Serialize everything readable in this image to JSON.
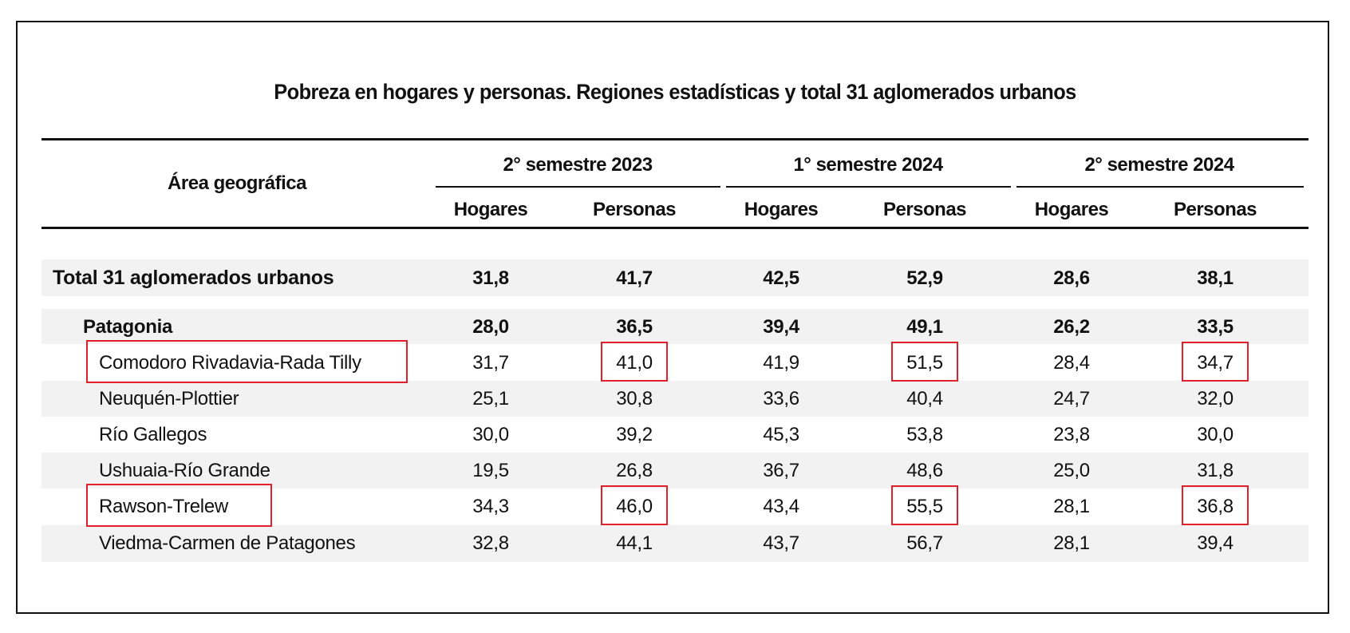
{
  "chart_data": {
    "type": "table",
    "title": "Pobreza en hogares y personas. Regiones estadísticas y total 31 aglomerados urbanos",
    "row_header": "Área geográfica",
    "periods": [
      "2° semestre 2023",
      "1° semestre 2024",
      "2° semestre 2024"
    ],
    "subcolumns": [
      "Hogares",
      "Personas"
    ],
    "rows": [
      {
        "name": "Total 31 aglomerados urbanos",
        "level": 0,
        "bold": true,
        "values": [
          "31,8",
          "41,7",
          "42,5",
          "52,9",
          "28,6",
          "38,1"
        ]
      },
      {
        "name": "Patagonia",
        "level": 1,
        "bold": true,
        "values": [
          "28,0",
          "36,5",
          "39,4",
          "49,1",
          "26,2",
          "33,5"
        ]
      },
      {
        "name": "Comodoro Rivadavia-Rada Tilly",
        "level": 2,
        "bold": false,
        "highlighted": true,
        "values": [
          "31,7",
          "41,0",
          "41,9",
          "51,5",
          "28,4",
          "34,7"
        ]
      },
      {
        "name": "Neuquén-Plottier",
        "level": 2,
        "bold": false,
        "values": [
          "25,1",
          "30,8",
          "33,6",
          "40,4",
          "24,7",
          "32,0"
        ]
      },
      {
        "name": "Río Gallegos",
        "level": 2,
        "bold": false,
        "values": [
          "30,0",
          "39,2",
          "45,3",
          "53,8",
          "23,8",
          "30,0"
        ]
      },
      {
        "name": "Ushuaia-Río Grande",
        "level": 2,
        "bold": false,
        "values": [
          "19,5",
          "26,8",
          "36,7",
          "48,6",
          "25,0",
          "31,8"
        ]
      },
      {
        "name": "Rawson-Trelew",
        "level": 2,
        "bold": false,
        "highlighted": true,
        "values": [
          "34,3",
          "46,0",
          "43,4",
          "55,5",
          "28,1",
          "36,8"
        ]
      },
      {
        "name": "Viedma-Carmen de Patagones",
        "level": 2,
        "bold": false,
        "values": [
          "32,8",
          "44,1",
          "43,7",
          "56,7",
          "28,1",
          "39,4"
        ]
      }
    ],
    "highlight_color": "#e0202a"
  }
}
